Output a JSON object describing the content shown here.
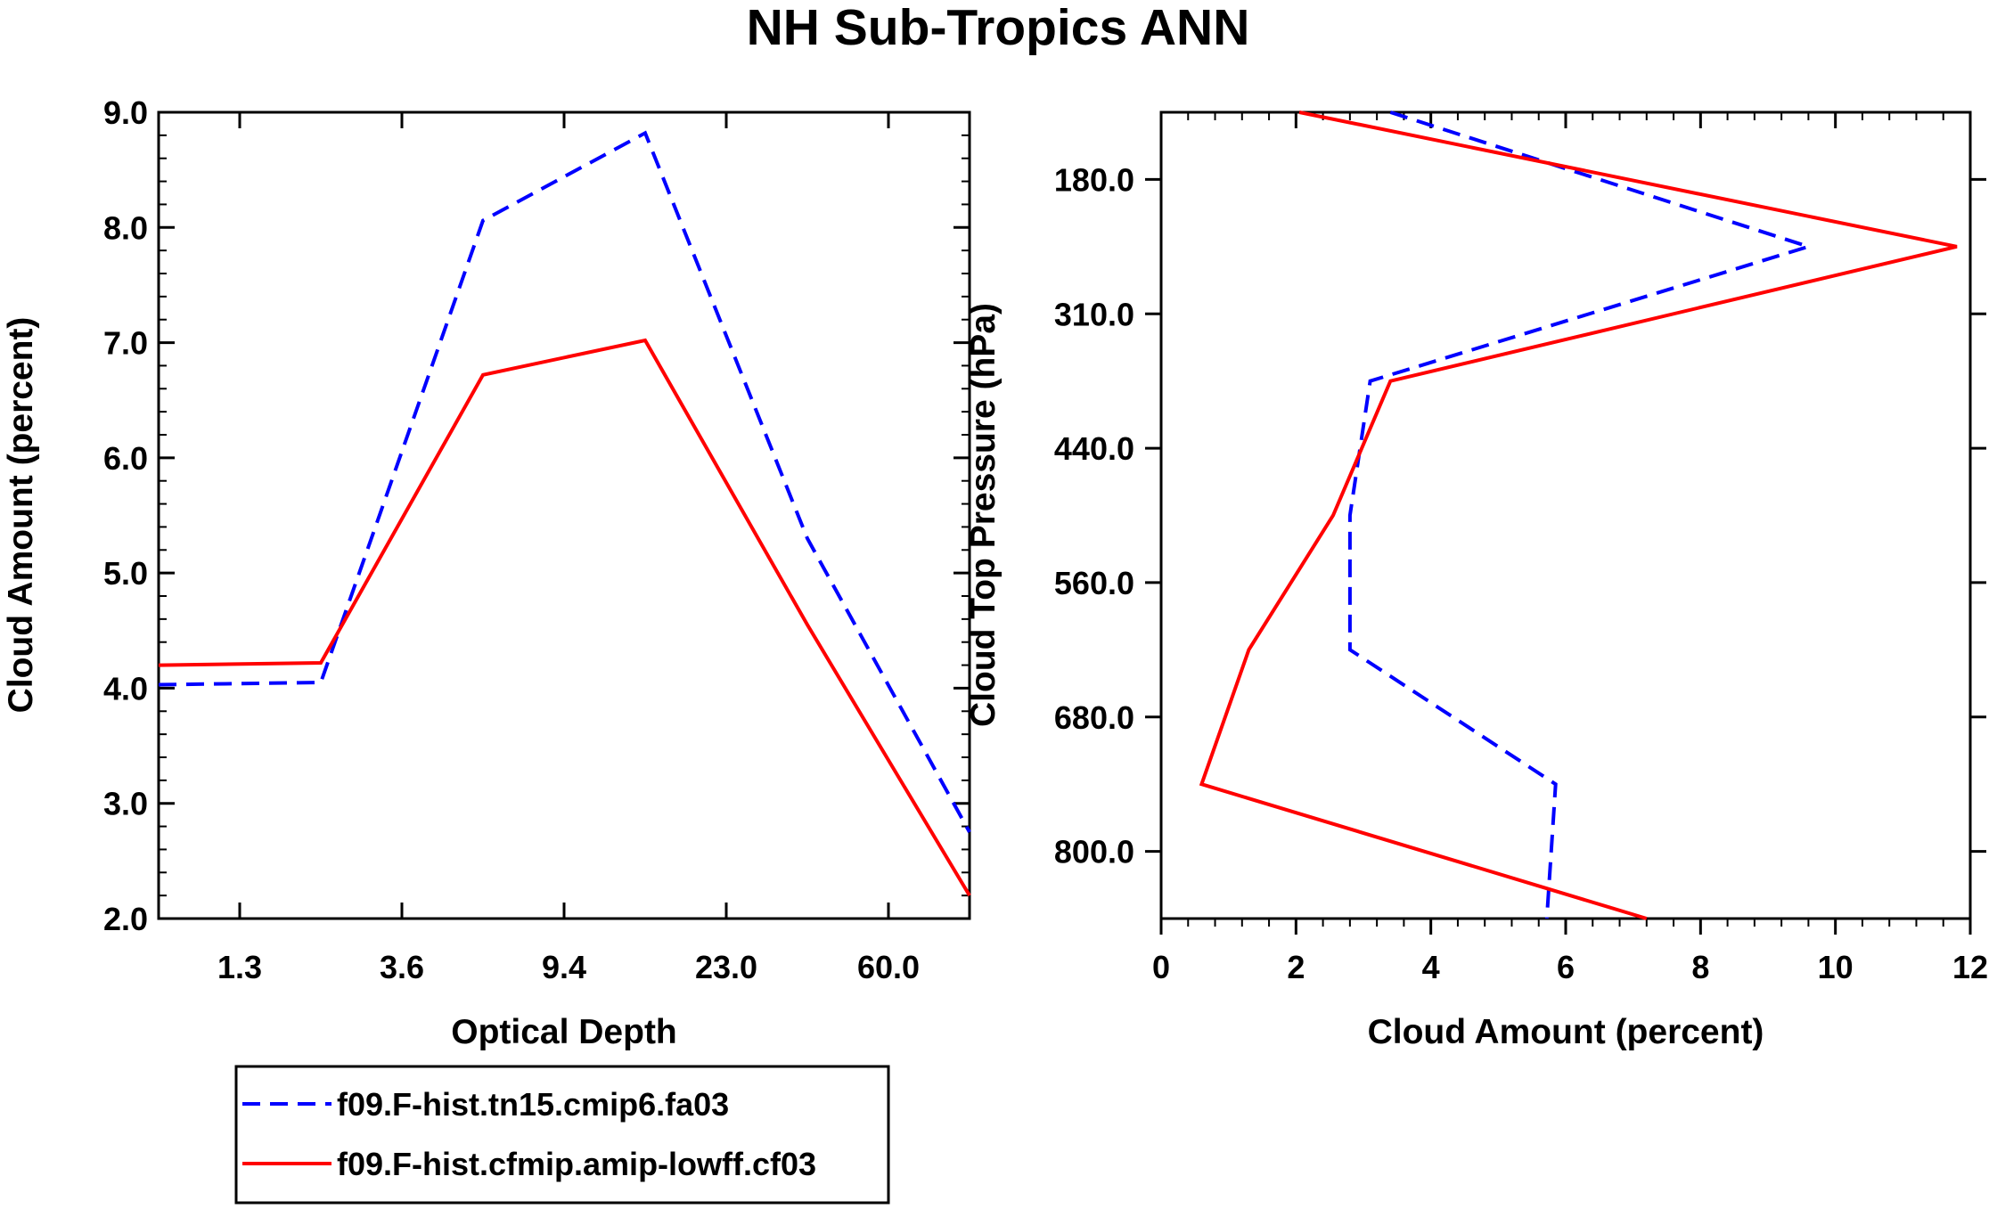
{
  "title": "NH Sub-Tropics ANN",
  "chart_data": [
    {
      "type": "line",
      "xlabel": "Optical Depth",
      "ylabel": "Cloud Amount (percent)",
      "x_tick_labels": [
        "1.3",
        "3.6",
        "9.4",
        "23.0",
        "60.0"
      ],
      "y_tick_labels": [
        "2.0",
        "3.0",
        "4.0",
        "5.0",
        "6.0",
        "7.0",
        "8.0",
        "9.0"
      ],
      "ylim": [
        2.0,
        9.0
      ],
      "x_index_range": [
        0,
        5
      ],
      "series": [
        {
          "name": "f09.F-hist.tn15.cmip6.fa03",
          "color": "#0000ff",
          "dash": true,
          "x": [
            0,
            1,
            2,
            3,
            4,
            5
          ],
          "values": [
            4.03,
            4.05,
            8.06,
            8.82,
            5.3,
            2.75
          ]
        },
        {
          "name": "f09.F-hist.cfmip.amip-lowff.cf03",
          "color": "#ff0000",
          "dash": false,
          "x": [
            0,
            1,
            2,
            3,
            4,
            5
          ],
          "values": [
            4.2,
            4.22,
            6.72,
            7.02,
            4.55,
            2.2
          ]
        }
      ]
    },
    {
      "type": "line",
      "xlabel": "Cloud Amount (percent)",
      "ylabel": "Cloud Top Pressure (hPa)",
      "x_tick_labels": [
        "0",
        "2",
        "4",
        "6",
        "8",
        "10",
        "12"
      ],
      "xlim": [
        0,
        12
      ],
      "y_tick_labels": [
        "180.0",
        "310.0",
        "440.0",
        "560.0",
        "680.0",
        "800.0"
      ],
      "y_index_range": [
        0,
        6
      ],
      "series": [
        {
          "name": "f09.F-hist.tn15.cmip6.fa03",
          "color": "#0000ff",
          "dash": true,
          "values": [
            3.4,
            9.6,
            3.1,
            2.8,
            2.8,
            5.85,
            5.72
          ],
          "y": [
            0,
            1,
            2,
            3,
            4,
            5,
            6
          ]
        },
        {
          "name": "f09.F-hist.cfmip.amip-lowff.cf03",
          "color": "#ff0000",
          "dash": false,
          "values": [
            2.05,
            11.8,
            3.4,
            2.55,
            1.3,
            0.6,
            7.2
          ],
          "y": [
            0,
            1,
            2,
            3,
            4,
            5,
            6
          ]
        }
      ]
    }
  ],
  "legend": [
    {
      "label": "f09.F-hist.tn15.cmip6.fa03",
      "color": "#0000ff",
      "dash": true
    },
    {
      "label": "f09.F-hist.cfmip.amip-lowff.cf03",
      "color": "#ff0000",
      "dash": false
    }
  ]
}
